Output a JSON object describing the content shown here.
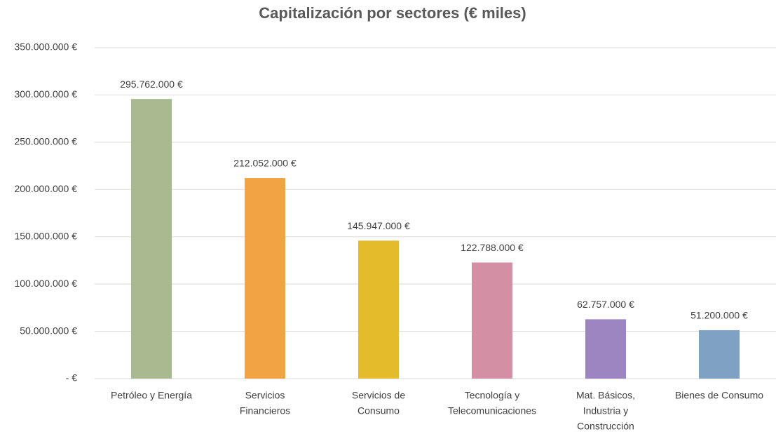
{
  "chart_data": {
    "type": "bar",
    "title": "Capitalización por sectores (€ miles)",
    "categories": [
      [
        "Petróleo y Energía"
      ],
      [
        "Servicios",
        "Financieros"
      ],
      [
        "Servicios de",
        "Consumo"
      ],
      [
        "Tecnología y",
        "Telecomunicaciones"
      ],
      [
        "Mat. Básicos,",
        "Industria y",
        "Construcción"
      ],
      [
        "Bienes de Consumo"
      ]
    ],
    "values": [
      295762000,
      212052000,
      145947000,
      122788000,
      62757000,
      51200000
    ],
    "value_labels": [
      "295.762.000 €",
      "212.052.000 €",
      "145.947.000 €",
      "122.788.000 €",
      "62.757.000 €",
      "51.200.000 €"
    ],
    "colors": [
      "#a9b990",
      "#f2a444",
      "#e4bb2a",
      "#d390a5",
      "#9d85c1",
      "#7fa1c4"
    ],
    "ylim": [
      0,
      350000000
    ],
    "yticks": [
      {
        "value": 0,
        "label": "-  €"
      },
      {
        "value": 50000000,
        "label": "50.000.000 €"
      },
      {
        "value": 100000000,
        "label": "100.000.000 €"
      },
      {
        "value": 150000000,
        "label": "150.000.000 €"
      },
      {
        "value": 200000000,
        "label": "200.000.000 €"
      },
      {
        "value": 250000000,
        "label": "250.000.000 €"
      },
      {
        "value": 300000000,
        "label": "300.000.000 €"
      },
      {
        "value": 350000000,
        "label": "350.000.000 €"
      }
    ],
    "grid": true
  }
}
